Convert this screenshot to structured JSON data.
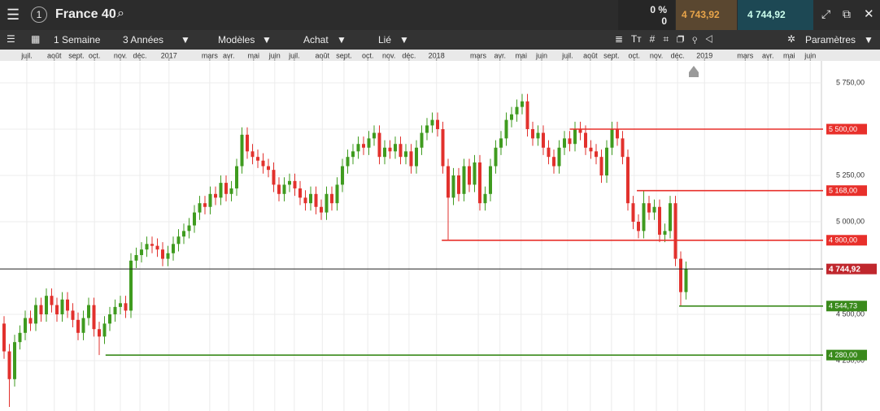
{
  "toolbar": {
    "instrument": "France 40",
    "change": "0 %",
    "change_abs": "0",
    "sell": "4 743,92",
    "buy": "4 744,92",
    "interval": "1 Semaine",
    "range": "3 Années",
    "templates": "Modèles",
    "order": "Achat",
    "link": "Lié",
    "settings": "Paramètres"
  },
  "chart_data": {
    "type": "candlestick",
    "up_color": "#3f9b1f",
    "down_color": "#e2312d",
    "grid": true,
    "ylim": [
      3978,
      5864
    ],
    "yticks": [
      {
        "value": 5750,
        "label": "5 750,00"
      },
      {
        "value": 5500,
        "label": "5 500,00"
      },
      {
        "value": 5250,
        "label": "5 250,00"
      },
      {
        "value": 5000,
        "label": "5 000,00"
      },
      {
        "value": 4500,
        "label": "4 500,00"
      },
      {
        "value": 4250,
        "label": "4 250,00"
      }
    ],
    "xticks": [
      {
        "value": 4.3,
        "label": "juil."
      },
      {
        "value": 9.5,
        "label": "août"
      },
      {
        "value": 13.7,
        "label": "sept."
      },
      {
        "value": 17.1,
        "label": "oct."
      },
      {
        "value": 22,
        "label": "nov."
      },
      {
        "value": 25.7,
        "label": "déc."
      },
      {
        "value": 31.2,
        "label": "2017"
      },
      {
        "value": 38.9,
        "label": "mars"
      },
      {
        "value": 42.5,
        "label": "avr."
      },
      {
        "value": 47.2,
        "label": "mai"
      },
      {
        "value": 51.2,
        "label": "juin"
      },
      {
        "value": 54.9,
        "label": "juil."
      },
      {
        "value": 60.2,
        "label": "août"
      },
      {
        "value": 64.3,
        "label": "sept."
      },
      {
        "value": 68.8,
        "label": "oct."
      },
      {
        "value": 72.8,
        "label": "nov."
      },
      {
        "value": 76.6,
        "label": "déc."
      },
      {
        "value": 81.8,
        "label": "2018"
      },
      {
        "value": 89.7,
        "label": "mars"
      },
      {
        "value": 93.8,
        "label": "avr."
      },
      {
        "value": 97.8,
        "label": "mai"
      },
      {
        "value": 101.7,
        "label": "juin"
      },
      {
        "value": 106.6,
        "label": "juil."
      },
      {
        "value": 110.9,
        "label": "août"
      },
      {
        "value": 114.9,
        "label": "sept."
      },
      {
        "value": 119.2,
        "label": "oct."
      },
      {
        "value": 123.4,
        "label": "nov."
      },
      {
        "value": 127.4,
        "label": "déc."
      },
      {
        "value": 132.5,
        "label": "2019"
      },
      {
        "value": 140.2,
        "label": "mars"
      },
      {
        "value": 144.5,
        "label": "avr."
      },
      {
        "value": 148.5,
        "label": "mai"
      },
      {
        "value": 152.5,
        "label": "juin"
      }
    ],
    "open": [
      4450,
      4300,
      4150,
      4350,
      4400,
      4480,
      4450,
      4550,
      4500,
      4600,
      4550,
      4500,
      4580,
      4520,
      4470,
      4400,
      4480,
      4550,
      4420,
      4380,
      4450,
      4500,
      4540,
      4560,
      4520,
      4790,
      4820,
      4850,
      4880,
      4870,
      4850,
      4800,
      4830,
      4880,
      4920,
      4950,
      4980,
      5050,
      5100,
      5080,
      5150,
      5130,
      5210,
      5150,
      5180,
      5300,
      5470,
      5380,
      5350,
      5330,
      5300,
      5280,
      5200,
      5150,
      5200,
      5220,
      5180,
      5130,
      5100,
      5150,
      5080,
      5050,
      5150,
      5100,
      5200,
      5300,
      5350,
      5380,
      5420,
      5400,
      5450,
      5480,
      5350,
      5400,
      5380,
      5420,
      5350,
      5380,
      5300,
      5400,
      5480,
      5520,
      5550,
      5500,
      5300,
      5130,
      5250,
      5150,
      5300,
      5200,
      5320,
      5100,
      5150,
      5300,
      5400,
      5450,
      5550,
      5580,
      5620,
      5650,
      5500,
      5450,
      5480,
      5400,
      5350,
      5300,
      5400,
      5450,
      5420,
      5500,
      5480,
      5400,
      5380,
      5350,
      5250,
      5400,
      5500,
      5450,
      5350,
      5100,
      5000,
      4950,
      5100,
      5050,
      5080,
      4930,
      4950,
      5100,
      4800,
      4620
    ],
    "high": [
      4490,
      4340,
      4390,
      4440,
      4520,
      4520,
      4590,
      4590,
      4640,
      4640,
      4590,
      4620,
      4620,
      4560,
      4510,
      4520,
      4590,
      4590,
      4460,
      4490,
      4540,
      4580,
      4600,
      4600,
      4830,
      4860,
      4890,
      4920,
      4920,
      4910,
      4890,
      4870,
      4920,
      4960,
      4990,
      5020,
      5090,
      5140,
      5140,
      5190,
      5190,
      5250,
      5250,
      5220,
      5340,
      5510,
      5510,
      5420,
      5390,
      5370,
      5340,
      5320,
      5240,
      5240,
      5260,
      5260,
      5220,
      5170,
      5190,
      5190,
      5120,
      5190,
      5190,
      5240,
      5340,
      5390,
      5420,
      5460,
      5460,
      5490,
      5520,
      5520,
      5440,
      5440,
      5460,
      5460,
      5420,
      5420,
      5440,
      5520,
      5560,
      5590,
      5590,
      5540,
      5340,
      5290,
      5290,
      5340,
      5340,
      5360,
      5360,
      5190,
      5340,
      5440,
      5490,
      5590,
      5620,
      5660,
      5690,
      5690,
      5540,
      5520,
      5520,
      5440,
      5390,
      5440,
      5490,
      5490,
      5540,
      5540,
      5520,
      5440,
      5420,
      5390,
      5440,
      5540,
      5540,
      5490,
      5390,
      5140,
      5040,
      5168,
      5140,
      5120,
      5120,
      4990,
      5140,
      5140,
      4840,
      4785
    ],
    "low": [
      4260,
      4000,
      4110,
      4310,
      4360,
      4410,
      4410,
      4460,
      4460,
      4510,
      4460,
      4460,
      4480,
      4430,
      4360,
      4360,
      4440,
      4380,
      4280,
      4340,
      4410,
      4460,
      4500,
      4480,
      4480,
      4750,
      4780,
      4810,
      4830,
      4810,
      4760,
      4760,
      4790,
      4840,
      4880,
      4910,
      4940,
      5010,
      5040,
      5040,
      5090,
      5090,
      5110,
      5110,
      5140,
      5260,
      5340,
      5310,
      5290,
      5260,
      5240,
      5160,
      5110,
      5110,
      5160,
      5140,
      5090,
      5060,
      5060,
      5040,
      5010,
      5010,
      5060,
      5060,
      5160,
      5260,
      5310,
      5340,
      5360,
      5360,
      5410,
      5310,
      5310,
      5340,
      5340,
      5310,
      5310,
      5260,
      5260,
      5360,
      5440,
      5480,
      5460,
      5260,
      4900,
      5090,
      5110,
      5110,
      5160,
      5160,
      5060,
      5060,
      5110,
      5260,
      5360,
      5410,
      5510,
      5540,
      5580,
      5460,
      5410,
      5410,
      5360,
      5310,
      5260,
      5260,
      5360,
      5380,
      5380,
      5440,
      5360,
      5340,
      5310,
      5210,
      5210,
      5360,
      5410,
      5310,
      5060,
      4960,
      4910,
      4910,
      5010,
      5010,
      4890,
      4890,
      4910,
      4760,
      4545,
      4580
    ],
    "close": [
      4300,
      4150,
      4350,
      4400,
      4480,
      4450,
      4550,
      4500,
      4600,
      4550,
      4500,
      4580,
      4520,
      4470,
      4400,
      4480,
      4550,
      4420,
      4380,
      4450,
      4500,
      4540,
      4560,
      4520,
      4790,
      4820,
      4850,
      4880,
      4870,
      4850,
      4800,
      4830,
      4880,
      4920,
      4950,
      4980,
      5050,
      5100,
      5080,
      5150,
      5130,
      5210,
      5150,
      5180,
      5300,
      5470,
      5380,
      5350,
      5330,
      5300,
      5280,
      5200,
      5150,
      5200,
      5220,
      5180,
      5130,
      5100,
      5150,
      5080,
      5050,
      5150,
      5100,
      5200,
      5300,
      5350,
      5380,
      5420,
      5400,
      5450,
      5480,
      5350,
      5400,
      5380,
      5420,
      5350,
      5380,
      5300,
      5400,
      5480,
      5520,
      5550,
      5500,
      5300,
      5130,
      5250,
      5150,
      5300,
      5200,
      5320,
      5100,
      5150,
      5300,
      5400,
      5450,
      5550,
      5580,
      5620,
      5650,
      5500,
      5450,
      5480,
      5400,
      5350,
      5300,
      5400,
      5450,
      5420,
      5500,
      5480,
      5400,
      5380,
      5350,
      5250,
      5400,
      5500,
      5450,
      5350,
      5100,
      5000,
      4950,
      5100,
      5050,
      5080,
      4930,
      4950,
      5100,
      4800,
      4620,
      4745
    ],
    "levels": [
      {
        "value": 5500,
        "label": "5 500,00",
        "color": "#e8302b",
        "start": 107
      },
      {
        "value": 5168,
        "label": "5 168,00",
        "color": "#e8302b",
        "start": 119.7
      },
      {
        "value": 4900,
        "label": "4 900,00",
        "color": "#e8302b",
        "start": 82.8
      },
      {
        "value": 4744.92,
        "label": "4 744,92",
        "color": "#222222",
        "label_color": "#c0272d",
        "start": -1
      },
      {
        "value": 4544.73,
        "label": "4 544,73",
        "color": "#3a8a1c",
        "start": 127.7
      },
      {
        "value": 4280,
        "label": "4 280,00",
        "color": "#3a8a1c",
        "start": 19.2
      }
    ]
  }
}
